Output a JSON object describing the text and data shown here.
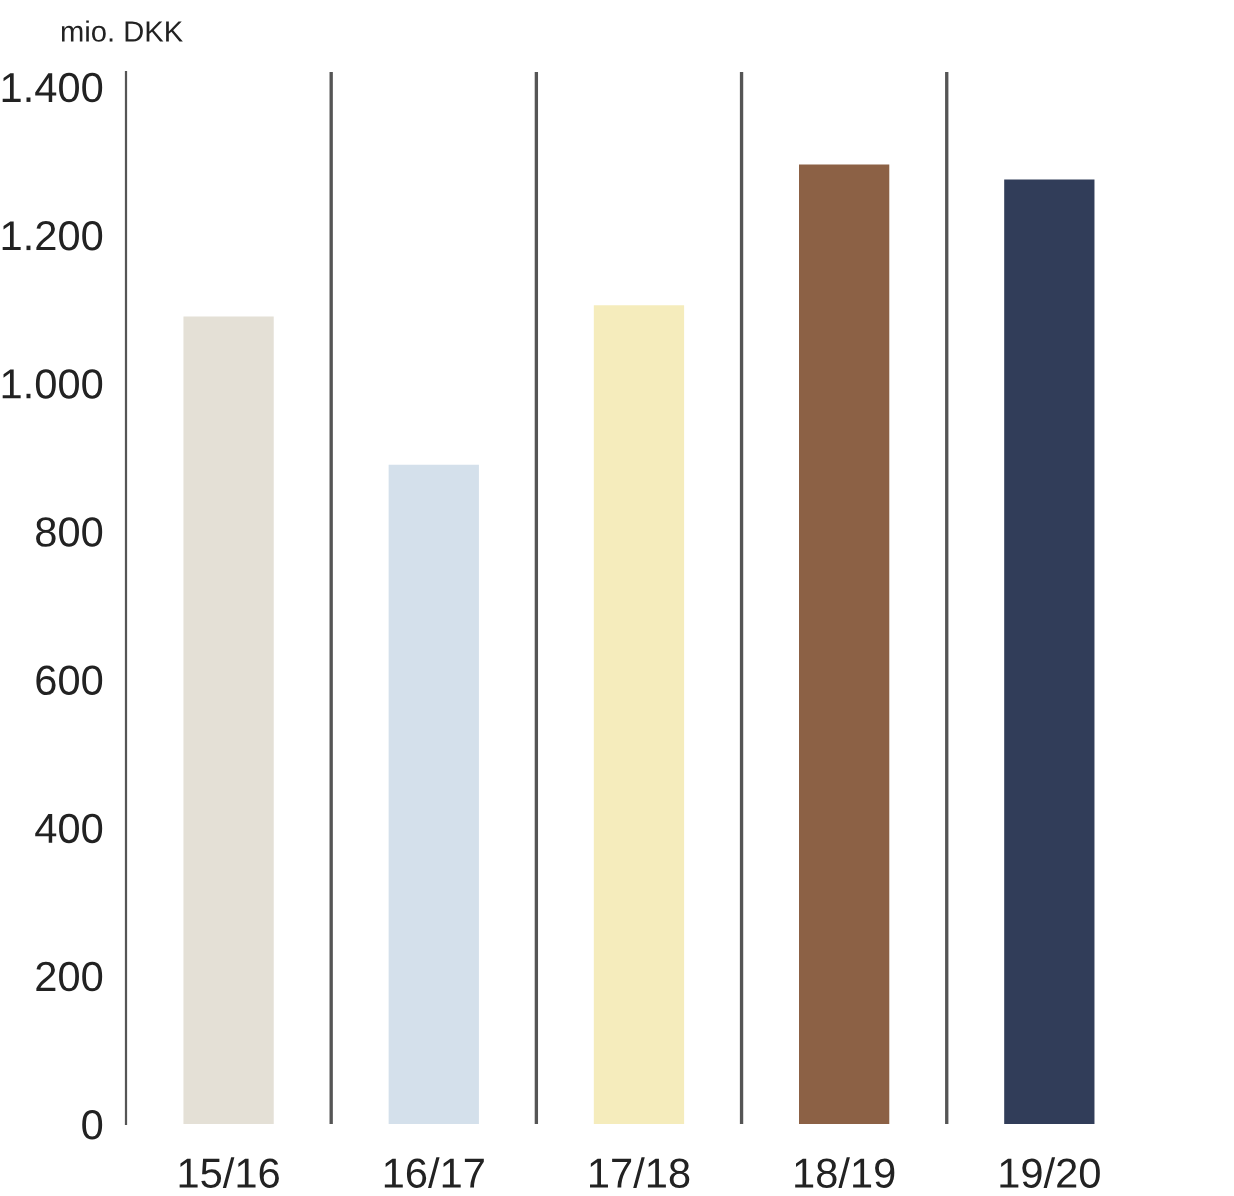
{
  "chart_data": {
    "type": "bar",
    "ylabel": "mio. DKK",
    "categories": [
      "15/16",
      "16/17",
      "17/18",
      "18/19",
      "19/20"
    ],
    "values": [
      1090,
      890,
      1105,
      1295,
      1275
    ],
    "colors": [
      "#e4e0d6",
      "#d4e0eb",
      "#f5ecbc",
      "#8c6145",
      "#313d59"
    ],
    "ylim": [
      0,
      1420
    ],
    "yticks": [
      {
        "value": 0,
        "label": "0"
      },
      {
        "value": 200,
        "label": "200"
      },
      {
        "value": 400,
        "label": "400"
      },
      {
        "value": 600,
        "label": "600"
      },
      {
        "value": 800,
        "label": "800"
      },
      {
        "value": 1000,
        "label": "1.000"
      },
      {
        "value": 1200,
        "label": "1.200"
      },
      {
        "value": 1400,
        "label": "1.400"
      }
    ],
    "grid": "x",
    "legend": false
  }
}
